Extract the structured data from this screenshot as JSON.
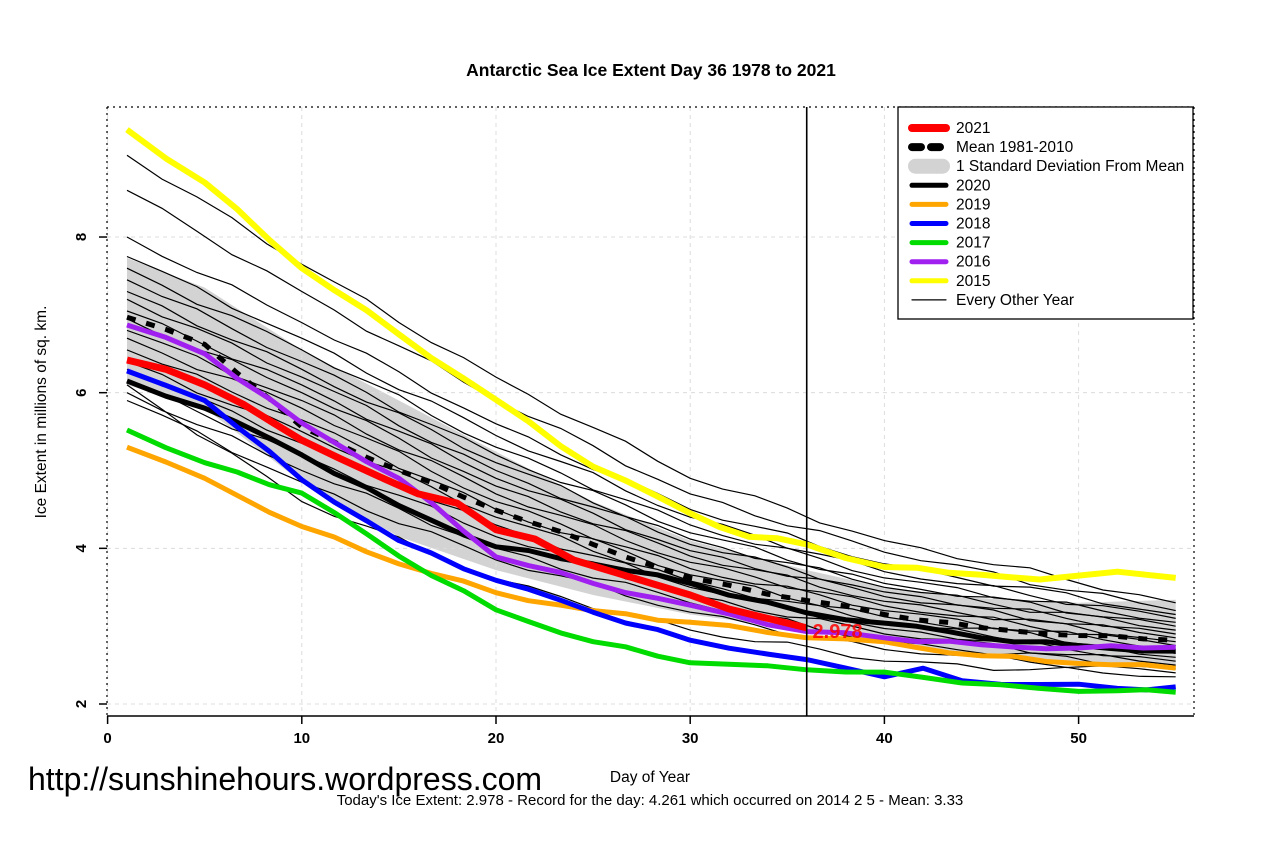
{
  "page": {
    "watermark": "http://sunshinehours.wordpress.com",
    "caption": "Today's Ice Extent: 2.978  - Record for the day: 4.261 which occurred on 2014 2 5  - Mean: 3.33"
  },
  "chart_data": {
    "type": "line",
    "title": "Antarctic Sea Ice Extent Day 36 1978 to 2021",
    "xlabel": "Day of Year",
    "ylabel": "Ice Extent in millions of sq. km.",
    "xlim": [
      0,
      56
    ],
    "ylim": [
      1.93,
      9.67
    ],
    "xticks": [
      0,
      10,
      20,
      30,
      40,
      50
    ],
    "yticks": [
      2,
      4,
      6,
      8
    ],
    "grid": true,
    "grid_color": "#DCDCDC",
    "legend_position": "top-right",
    "vline_day": 36,
    "annotation": {
      "text": "2.978",
      "day": 36.3,
      "value": 2.85,
      "color": "#FF0000"
    },
    "band": {
      "label": "1 Standard Deviation From Mean",
      "color": "#D3D3D3",
      "days": [
        1,
        5,
        10,
        15,
        20,
        25,
        30,
        36,
        40,
        45,
        50,
        55
      ],
      "top": [
        7.73,
        7.35,
        6.55,
        5.9,
        5.24,
        4.6,
        4.1,
        3.72,
        3.5,
        3.36,
        3.3,
        3.34
      ],
      "bottom": [
        6.1,
        5.8,
        4.85,
        4.15,
        3.72,
        3.4,
        3.15,
        2.95,
        2.8,
        2.62,
        2.52,
        2.45
      ]
    },
    "mean": {
      "label": "Mean 1981-2010",
      "color": "#000000",
      "days": [
        1,
        5,
        10,
        15,
        20,
        25,
        30,
        36,
        40,
        45,
        50,
        55
      ],
      "values": [
        6.97,
        6.62,
        5.56,
        5.0,
        4.49,
        4.05,
        3.62,
        3.33,
        3.15,
        2.98,
        2.88,
        2.82
      ]
    },
    "series": [
      {
        "name": "2020",
        "color": "#000000",
        "width": 5,
        "days": [
          1,
          5,
          10,
          15,
          20,
          25,
          30,
          36,
          40,
          45,
          50,
          55
        ],
        "values": [
          6.15,
          5.8,
          5.2,
          4.55,
          4.02,
          3.8,
          3.55,
          3.17,
          3.04,
          2.85,
          2.75,
          2.68
        ]
      },
      {
        "name": "2019",
        "color": "#FFA500",
        "width": 5,
        "days": [
          1,
          5,
          10,
          15,
          20,
          25,
          30,
          36,
          40,
          45,
          50,
          55
        ],
        "values": [
          5.3,
          4.9,
          4.28,
          3.8,
          3.43,
          3.2,
          3.05,
          2.85,
          2.8,
          2.62,
          2.52,
          2.46
        ]
      },
      {
        "name": "2018",
        "color": "#0000FF",
        "width": 5,
        "days": [
          1,
          5,
          10,
          15,
          20,
          25,
          30,
          36,
          40,
          42,
          44,
          48,
          52,
          55
        ],
        "values": [
          6.28,
          5.9,
          4.88,
          4.1,
          3.59,
          3.18,
          2.82,
          2.57,
          2.35,
          2.46,
          2.3,
          2.25,
          2.2,
          2.22
        ]
      },
      {
        "name": "2017",
        "color": "#00DC00",
        "width": 5,
        "days": [
          1,
          5,
          10,
          15,
          20,
          25,
          30,
          36,
          40,
          44,
          48,
          52,
          55
        ],
        "values": [
          5.52,
          5.1,
          4.71,
          3.9,
          3.21,
          2.8,
          2.53,
          2.44,
          2.41,
          2.27,
          2.2,
          2.17,
          2.15
        ]
      },
      {
        "name": "2016",
        "color": "#A020F0",
        "width": 5,
        "days": [
          1,
          5,
          10,
          15,
          20,
          25,
          30,
          36,
          40,
          45,
          50,
          55
        ],
        "values": [
          6.87,
          6.5,
          5.61,
          4.9,
          3.89,
          3.55,
          3.27,
          2.93,
          2.85,
          2.76,
          2.72,
          2.73
        ]
      },
      {
        "name": "2015",
        "color": "#FFFF00",
        "width": 6,
        "days": [
          1,
          5,
          10,
          15,
          20,
          25,
          30,
          33,
          36,
          40,
          45,
          48,
          52,
          55
        ],
        "values": [
          9.38,
          8.7,
          7.6,
          6.75,
          5.91,
          5.05,
          4.45,
          4.15,
          4.05,
          3.76,
          3.66,
          3.6,
          3.7,
          3.62
        ]
      },
      {
        "name": "2021",
        "color": "#FF0000",
        "width": 7,
        "days": [
          1,
          3,
          5,
          7,
          10,
          12,
          14,
          16,
          18,
          20,
          22,
          24,
          26,
          28,
          30,
          32,
          34,
          36
        ],
        "values": [
          6.42,
          6.3,
          6.1,
          5.85,
          5.39,
          5.15,
          4.92,
          4.7,
          4.58,
          4.24,
          4.12,
          3.85,
          3.7,
          3.55,
          3.4,
          3.22,
          3.1,
          2.978
        ]
      }
    ],
    "other_years": {
      "label": "Every Other Year",
      "color": "#000000",
      "width": 1.2,
      "days": [
        1,
        10,
        20,
        30,
        40,
        55
      ],
      "lines": [
        [
          9.05,
          7.65,
          6.2,
          4.9,
          4.1,
          3.3
        ],
        [
          8.6,
          7.3,
          5.9,
          4.7,
          3.95,
          3.2
        ],
        [
          8.0,
          6.9,
          5.6,
          4.5,
          3.8,
          3.15
        ],
        [
          7.75,
          6.7,
          5.45,
          4.4,
          3.7,
          3.1
        ],
        [
          7.6,
          6.55,
          5.3,
          4.3,
          3.62,
          3.05
        ],
        [
          7.45,
          6.4,
          5.2,
          4.2,
          3.55,
          3.0
        ],
        [
          7.3,
          6.3,
          5.1,
          4.12,
          3.5,
          2.95
        ],
        [
          7.2,
          6.2,
          5.0,
          4.05,
          3.44,
          2.9
        ],
        [
          7.05,
          6.1,
          4.9,
          3.97,
          3.38,
          2.85
        ],
        [
          6.95,
          6.0,
          4.8,
          3.9,
          3.32,
          2.8
        ],
        [
          6.8,
          5.9,
          4.7,
          3.82,
          3.26,
          2.75
        ],
        [
          6.7,
          5.8,
          4.6,
          3.74,
          3.2,
          2.7
        ],
        [
          6.55,
          5.65,
          4.5,
          3.66,
          3.12,
          2.65
        ],
        [
          6.4,
          5.5,
          4.4,
          3.58,
          3.04,
          2.6
        ],
        [
          6.3,
          5.35,
          4.3,
          3.5,
          2.97,
          2.55
        ],
        [
          6.15,
          5.2,
          4.15,
          3.4,
          2.9,
          2.5
        ],
        [
          6.0,
          5.0,
          4.0,
          3.3,
          2.8,
          2.45
        ],
        [
          5.9,
          4.85,
          3.85,
          3.18,
          2.7,
          2.4
        ],
        [
          6.1,
          4.6,
          3.6,
          2.95,
          2.55,
          2.35
        ]
      ]
    }
  },
  "legend": {
    "entries": [
      {
        "label": "2021",
        "swatch": "line",
        "color": "#FF0000",
        "weight": 8,
        "dash": ""
      },
      {
        "label": "Mean 1981-2010",
        "swatch": "line",
        "color": "#000000",
        "weight": 8,
        "dash": "9,10"
      },
      {
        "label": "1 Standard Deviation From Mean",
        "swatch": "band",
        "color": "#D3D3D3",
        "weight": 15,
        "dash": ""
      },
      {
        "label": "2020",
        "swatch": "line",
        "color": "#000000",
        "weight": 5,
        "dash": ""
      },
      {
        "label": "2019",
        "swatch": "line",
        "color": "#FFA500",
        "weight": 5,
        "dash": ""
      },
      {
        "label": "2018",
        "swatch": "line",
        "color": "#0000FF",
        "weight": 5,
        "dash": ""
      },
      {
        "label": "2017",
        "swatch": "line",
        "color": "#00DC00",
        "weight": 5,
        "dash": ""
      },
      {
        "label": "2016",
        "swatch": "line",
        "color": "#A020F0",
        "weight": 5,
        "dash": ""
      },
      {
        "label": "2015",
        "swatch": "line",
        "color": "#FFFF00",
        "weight": 5,
        "dash": ""
      },
      {
        "label": "Every Other Year",
        "swatch": "line",
        "color": "#000000",
        "weight": 1.2,
        "dash": ""
      }
    ]
  }
}
